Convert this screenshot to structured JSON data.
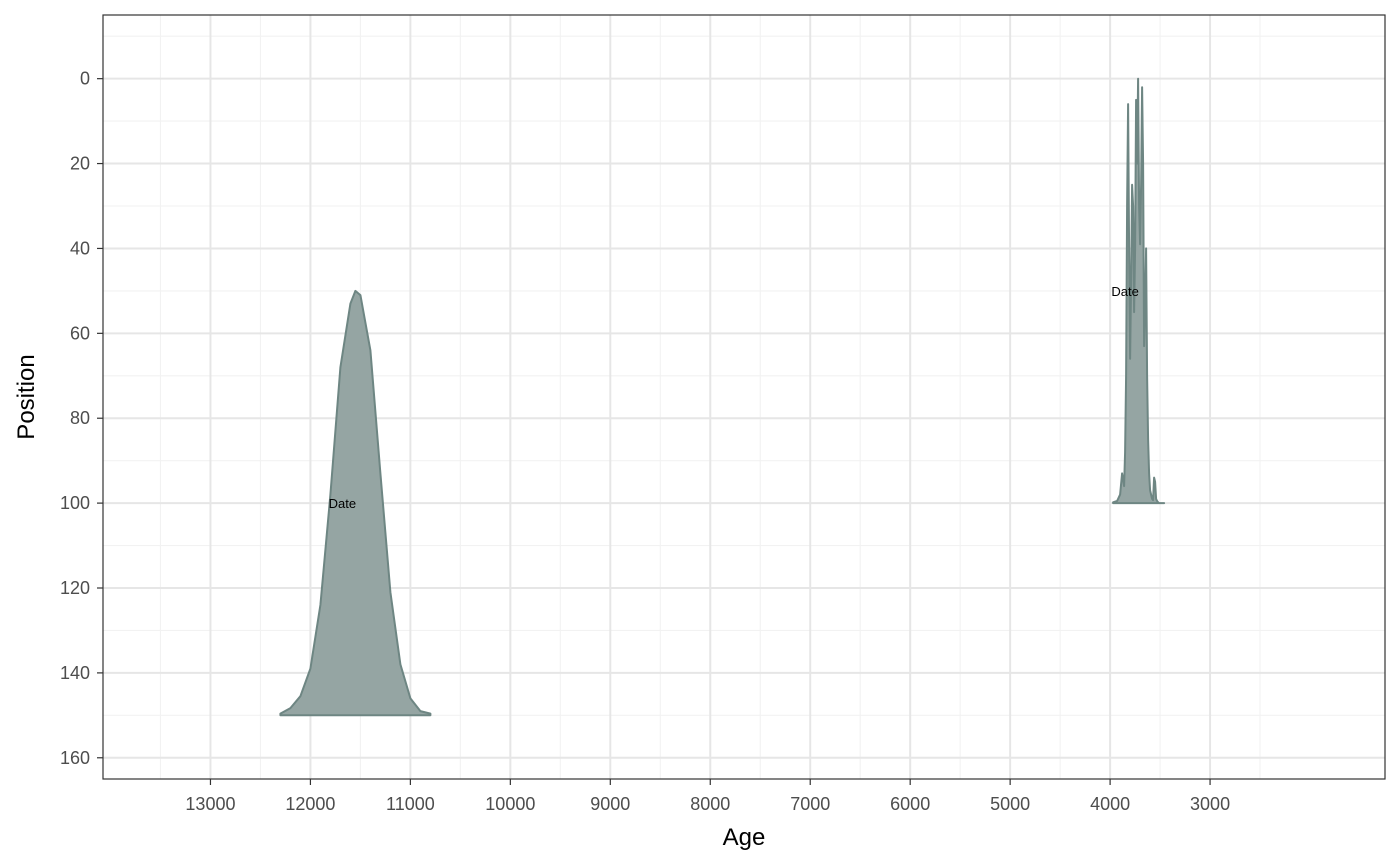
{
  "colors": {
    "fill": "#95A5A3",
    "stroke": "#6E8683",
    "grid_major": "#E6E6E6",
    "grid_minor": "#F2F2F2",
    "panel_border": "#333333",
    "tick_text": "#4D4D4D"
  },
  "chart_data": {
    "type": "area",
    "title": "",
    "xlabel": "Age",
    "ylabel": "Position",
    "x_reversed": true,
    "y_reversed": true,
    "xlim": [
      14075,
      1250
    ],
    "ylim": [
      -15,
      165
    ],
    "xticks": [
      13000,
      12000,
      11000,
      10000,
      9000,
      8000,
      7000,
      6000,
      5000,
      4000,
      3000
    ],
    "xtick_labels": [
      "13000",
      "12000",
      "11000",
      "10000",
      "9000",
      "8000",
      "7000",
      "6000",
      "5000",
      "4000",
      "3000"
    ],
    "yticks": [
      0,
      20,
      40,
      60,
      80,
      100,
      120,
      140,
      160
    ],
    "ytick_labels": [
      "0",
      "20",
      "40",
      "60",
      "80",
      "100",
      "120",
      "140",
      "160"
    ],
    "grid": true,
    "series": [
      {
        "name": "Date",
        "label": "Date",
        "label_age": 11680,
        "label_position": 100,
        "baseline_position": 150,
        "age": [
          12300,
          12200,
          12100,
          12000,
          11900,
          11800,
          11700,
          11600,
          11550,
          11500,
          11400,
          11300,
          11200,
          11100,
          11000,
          10900,
          10800
        ],
        "position": [
          149.6,
          148.3,
          145.5,
          139.0,
          124.0,
          98.0,
          68.0,
          53.0,
          50.0,
          51.0,
          64.0,
          93.0,
          121.0,
          138.0,
          146.0,
          149.0,
          149.6
        ]
      },
      {
        "name": "Date",
        "label": "Date",
        "label_age": 3850,
        "label_position": 50,
        "baseline_position": 100,
        "age": [
          3970,
          3930,
          3900,
          3880,
          3860,
          3850,
          3840,
          3830,
          3820,
          3810,
          3800,
          3790,
          3780,
          3770,
          3760,
          3750,
          3740,
          3730,
          3720,
          3710,
          3700,
          3690,
          3680,
          3670,
          3660,
          3650,
          3640,
          3630,
          3620,
          3610,
          3600,
          3590,
          3580,
          3570,
          3560,
          3550,
          3540,
          3530,
          3520,
          3510,
          3500,
          3490,
          3480,
          3470,
          3460
        ],
        "position": [
          99.8,
          99.5,
          98.0,
          93.0,
          96.0,
          88.0,
          70.0,
          30.0,
          6.0,
          40.0,
          66.0,
          48.0,
          25.0,
          30.0,
          55.0,
          40.0,
          5.0,
          20.0,
          0.0,
          30.0,
          39.0,
          25.0,
          2.0,
          20.0,
          63.0,
          55.0,
          40.0,
          70.0,
          85.0,
          93.0,
          97.0,
          98.0,
          99.0,
          99.3,
          94.0,
          95.0,
          99.0,
          99.5,
          99.8,
          100,
          100,
          100,
          100,
          100,
          100
        ]
      }
    ]
  }
}
